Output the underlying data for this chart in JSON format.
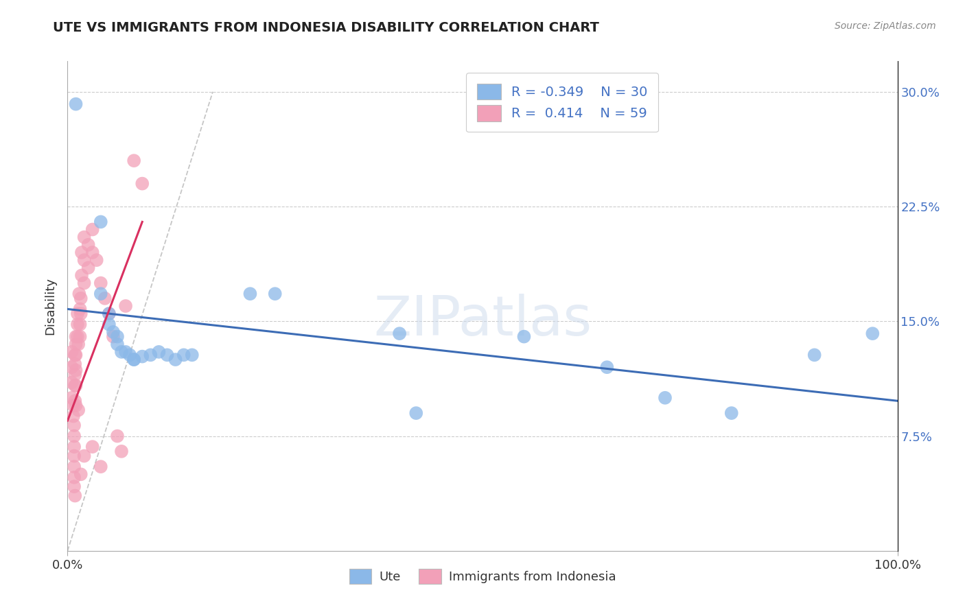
{
  "title": "UTE VS IMMIGRANTS FROM INDONESIA DISABILITY CORRELATION CHART",
  "source": "Source: ZipAtlas.com",
  "ylabel": "Disability",
  "watermark": "ZIPatlas",
  "xlim": [
    0,
    1.0
  ],
  "ylim": [
    0.0,
    0.32
  ],
  "yticks": [
    0.075,
    0.15,
    0.225,
    0.3
  ],
  "yticklabels": [
    "7.5%",
    "15.0%",
    "22.5%",
    "30.0%"
  ],
  "color_blue": "#8BB8E8",
  "color_pink": "#F2A0B8",
  "line_blue": "#3C6CB5",
  "line_pink": "#D93060",
  "line_gray": "#C0C0C0",
  "blue_x": [
    0.01,
    0.04,
    0.04,
    0.05,
    0.05,
    0.055,
    0.06,
    0.06,
    0.065,
    0.07,
    0.075,
    0.08,
    0.08,
    0.09,
    0.1,
    0.11,
    0.12,
    0.13,
    0.14,
    0.15,
    0.22,
    0.25,
    0.4,
    0.42,
    0.55,
    0.65,
    0.72,
    0.8,
    0.9,
    0.97
  ],
  "blue_y": [
    0.292,
    0.215,
    0.168,
    0.155,
    0.148,
    0.143,
    0.14,
    0.135,
    0.13,
    0.13,
    0.128,
    0.125,
    0.125,
    0.127,
    0.128,
    0.13,
    0.128,
    0.125,
    0.128,
    0.128,
    0.168,
    0.168,
    0.142,
    0.09,
    0.14,
    0.12,
    0.1,
    0.09,
    0.128,
    0.142
  ],
  "pink_x": [
    0.005,
    0.005,
    0.005,
    0.005,
    0.007,
    0.007,
    0.008,
    0.008,
    0.008,
    0.008,
    0.008,
    0.008,
    0.008,
    0.009,
    0.009,
    0.009,
    0.009,
    0.009,
    0.009,
    0.01,
    0.01,
    0.01,
    0.01,
    0.01,
    0.01,
    0.012,
    0.012,
    0.012,
    0.013,
    0.013,
    0.014,
    0.015,
    0.015,
    0.015,
    0.016,
    0.016,
    0.016,
    0.017,
    0.017,
    0.02,
    0.02,
    0.02,
    0.02,
    0.025,
    0.025,
    0.03,
    0.03,
    0.03,
    0.035,
    0.04,
    0.04,
    0.045,
    0.05,
    0.055,
    0.06,
    0.065,
    0.07,
    0.08,
    0.09
  ],
  "pink_y": [
    0.13,
    0.12,
    0.11,
    0.1,
    0.095,
    0.088,
    0.082,
    0.075,
    0.068,
    0.062,
    0.055,
    0.048,
    0.042,
    0.036,
    0.128,
    0.122,
    0.115,
    0.108,
    0.098,
    0.14,
    0.135,
    0.128,
    0.118,
    0.108,
    0.095,
    0.155,
    0.148,
    0.14,
    0.135,
    0.092,
    0.168,
    0.158,
    0.148,
    0.14,
    0.165,
    0.155,
    0.05,
    0.195,
    0.18,
    0.205,
    0.19,
    0.175,
    0.062,
    0.2,
    0.185,
    0.21,
    0.195,
    0.068,
    0.19,
    0.175,
    0.055,
    0.165,
    0.155,
    0.14,
    0.075,
    0.065,
    0.16,
    0.255,
    0.24
  ],
  "blue_line_x0": 0.0,
  "blue_line_y0": 0.158,
  "blue_line_x1": 1.0,
  "blue_line_y1": 0.098,
  "pink_line_x0": 0.0,
  "pink_line_y0": 0.085,
  "pink_line_x1": 0.09,
  "pink_line_y1": 0.215,
  "gray_line_x0": 0.0,
  "gray_line_y0": 0.0,
  "gray_line_x1": 0.175,
  "gray_line_y1": 0.3
}
